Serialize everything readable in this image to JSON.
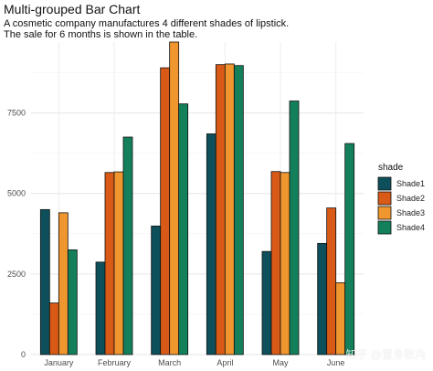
{
  "chart_data": {
    "type": "bar",
    "title": "Multi-grouped Bar Chart",
    "subtitle_lines": [
      "A cosmetic company manufactures 4 different shades of lipstick.",
      "The sale for 6 months is shown in the table."
    ],
    "categories": [
      "January",
      "February",
      "March",
      "April",
      "May",
      "June"
    ],
    "series": [
      {
        "name": "Shade1",
        "color": "#0d4f5a",
        "values": [
          4500,
          2870,
          3990,
          6850,
          3200,
          3450
        ]
      },
      {
        "name": "Shade2",
        "color": "#d85a16",
        "values": [
          1600,
          5650,
          8900,
          9000,
          5680,
          4550
        ]
      },
      {
        "name": "Shade3",
        "color": "#f0962f",
        "values": [
          4400,
          5670,
          9700,
          9020,
          5650,
          2230
        ]
      },
      {
        "name": "Shade4",
        "color": "#13805b",
        "values": [
          3250,
          6750,
          7780,
          8970,
          7870,
          6550
        ]
      }
    ],
    "yticks": [
      0,
      2500,
      5000,
      7500
    ],
    "ylim": [
      0,
      9700
    ],
    "legend_title": "shade",
    "legend_position": "right",
    "grid": true
  },
  "watermark": "知乎 @置身数内"
}
